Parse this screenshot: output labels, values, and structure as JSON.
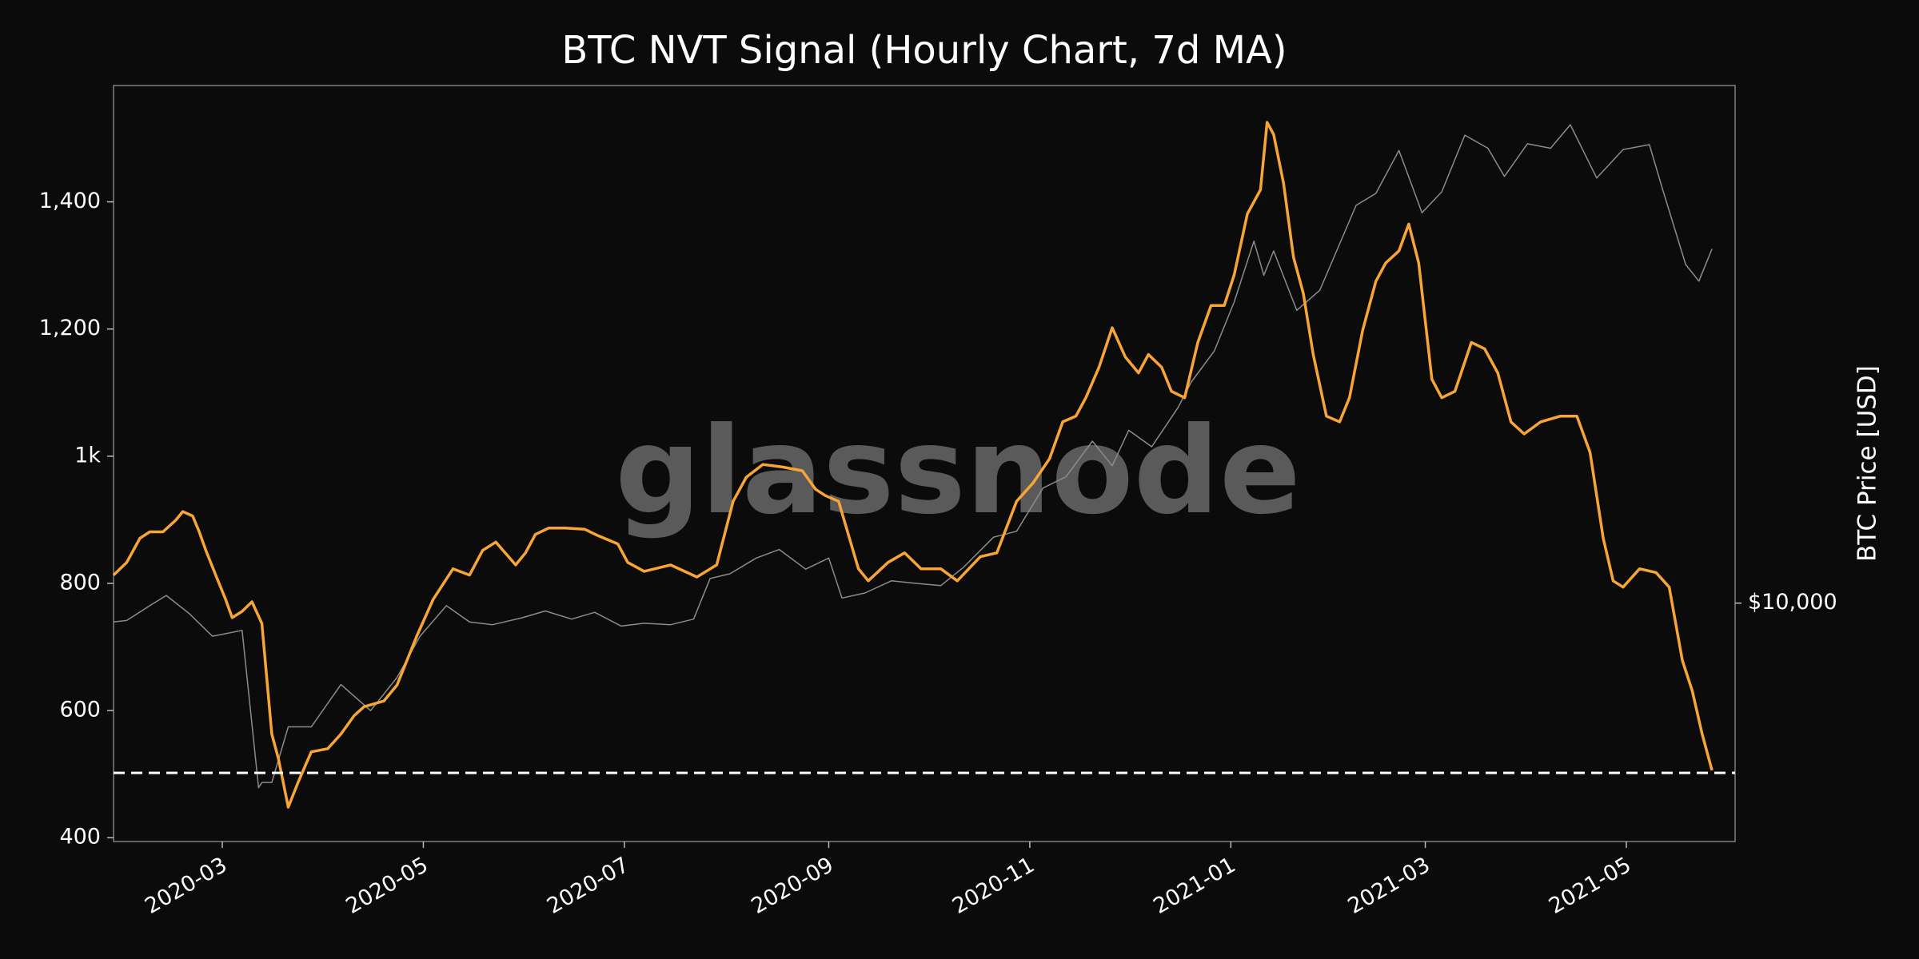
{
  "chart_data": {
    "type": "line",
    "title": "BTC NVT Signal (Hourly Chart, 7d MA)",
    "watermark": "glassnode",
    "y2label": "BTC Price [USD]",
    "xlim": [
      "2020-01-28",
      "2021-06-03"
    ],
    "xticks": [
      {
        "value": "2020-03-01",
        "label": "2020-03"
      },
      {
        "value": "2020-05-01",
        "label": "2020-05"
      },
      {
        "value": "2020-07-01",
        "label": "2020-07"
      },
      {
        "value": "2020-09-01",
        "label": "2020-09"
      },
      {
        "value": "2020-11-01",
        "label": "2020-11"
      },
      {
        "value": "2021-01-01",
        "label": "2021-01"
      },
      {
        "value": "2021-03-01",
        "label": "2021-03"
      },
      {
        "value": "2021-05-01",
        "label": "2021-05"
      }
    ],
    "ylim": [
      394,
      1583
    ],
    "yticks": [
      400,
      600,
      800,
      {
        "value": 1000,
        "label": "1k"
      },
      {
        "value": 1200,
        "label": "1,200"
      },
      {
        "value": 1400,
        "label": "1,400"
      }
    ],
    "y2lim": [
      3980,
      73900
    ],
    "y2scale": "log",
    "y2ticks": [
      {
        "value": 10000,
        "label": "$10,000"
      }
    ],
    "threshold": 502,
    "threshold_color": "#ffffff",
    "series": [
      {
        "color": "#8c8c8c",
        "axis": "y2",
        "x": [
          "2020-01-28",
          "2020-02-01",
          "2020-02-08",
          "2020-02-13",
          "2020-02-20",
          "2020-02-27",
          "2020-03-07",
          "2020-03-12",
          "2020-03-13",
          "2020-03-16",
          "2020-03-21",
          "2020-03-28",
          "2020-04-06",
          "2020-04-15",
          "2020-04-23",
          "2020-04-30",
          "2020-05-08",
          "2020-05-15",
          "2020-05-22",
          "2020-05-31",
          "2020-06-07",
          "2020-06-15",
          "2020-06-22",
          "2020-06-30",
          "2020-07-07",
          "2020-07-15",
          "2020-07-22",
          "2020-07-27",
          "2020-08-02",
          "2020-08-10",
          "2020-08-17",
          "2020-08-25",
          "2020-09-01",
          "2020-09-05",
          "2020-09-12",
          "2020-09-20",
          "2020-09-27",
          "2020-10-05",
          "2020-10-12",
          "2020-10-21",
          "2020-10-28",
          "2020-11-05",
          "2020-11-12",
          "2020-11-20",
          "2020-11-26",
          "2020-12-01",
          "2020-12-08",
          "2020-12-16",
          "2020-12-20",
          "2020-12-27",
          "2021-01-02",
          "2021-01-08",
          "2021-01-11",
          "2021-01-14",
          "2021-01-21",
          "2021-01-28",
          "2021-02-08",
          "2021-02-14",
          "2021-02-21",
          "2021-02-28",
          "2021-03-06",
          "2021-03-13",
          "2021-03-20",
          "2021-03-25",
          "2021-04-01",
          "2021-04-08",
          "2021-04-14",
          "2021-04-22",
          "2021-04-30",
          "2021-05-08",
          "2021-05-12",
          "2021-05-19",
          "2021-05-23",
          "2021-05-27"
        ],
        "values": [
          9300,
          9350,
          9900,
          10300,
          9600,
          8800,
          9000,
          4900,
          5000,
          5000,
          6200,
          6200,
          7300,
          6600,
          7500,
          8800,
          9900,
          9300,
          9200,
          9450,
          9700,
          9400,
          9650,
          9150,
          9250,
          9200,
          9400,
          11000,
          11200,
          11900,
          12300,
          11400,
          11900,
          10200,
          10400,
          10900,
          10800,
          10700,
          11500,
          12900,
          13200,
          15600,
          16300,
          18700,
          17000,
          19500,
          18300,
          21300,
          23500,
          26500,
          32000,
          40500,
          35500,
          39000,
          31000,
          33500,
          46500,
          48700,
          57500,
          45200,
          49000,
          61000,
          58000,
          52000,
          59000,
          58000,
          63500,
          51700,
          57700,
          58800,
          49500,
          37000,
          34700,
          39300
        ]
      },
      {
        "color": "#f7a535",
        "x": [
          "2020-01-28",
          "2020-02-01",
          "2020-02-05",
          "2020-02-08",
          "2020-02-12",
          "2020-02-16",
          "2020-02-18",
          "2020-02-21",
          "2020-02-23",
          "2020-02-25",
          "2020-02-28",
          "2020-03-02",
          "2020-03-04",
          "2020-03-07",
          "2020-03-10",
          "2020-03-13",
          "2020-03-16",
          "2020-03-18",
          "2020-03-21",
          "2020-03-24",
          "2020-03-28",
          "2020-04-02",
          "2020-04-06",
          "2020-04-10",
          "2020-04-13",
          "2020-04-19",
          "2020-04-23",
          "2020-04-29",
          "2020-05-04",
          "2020-05-10",
          "2020-05-15",
          "2020-05-19",
          "2020-05-23",
          "2020-05-29",
          "2020-06-01",
          "2020-06-04",
          "2020-06-08",
          "2020-06-13",
          "2020-06-19",
          "2020-06-23",
          "2020-06-29",
          "2020-07-02",
          "2020-07-07",
          "2020-07-15",
          "2020-07-23",
          "2020-07-29",
          "2020-08-03",
          "2020-08-07",
          "2020-08-12",
          "2020-08-18",
          "2020-08-24",
          "2020-08-28",
          "2020-08-31",
          "2020-09-04",
          "2020-09-10",
          "2020-09-13",
          "2020-09-19",
          "2020-09-24",
          "2020-09-29",
          "2020-10-05",
          "2020-10-10",
          "2020-10-17",
          "2020-10-22",
          "2020-10-28",
          "2020-11-02",
          "2020-11-07",
          "2020-11-11",
          "2020-11-15",
          "2020-11-18",
          "2020-11-22",
          "2020-11-26",
          "2020-11-30",
          "2020-12-04",
          "2020-12-07",
          "2020-12-11",
          "2020-12-14",
          "2020-12-18",
          "2020-12-22",
          "2020-12-26",
          "2020-12-30",
          "2021-01-02",
          "2021-01-06",
          "2021-01-10",
          "2021-01-12",
          "2021-01-14",
          "2021-01-17",
          "2021-01-20",
          "2021-01-23",
          "2021-01-26",
          "2021-01-30",
          "2021-02-03",
          "2021-02-06",
          "2021-02-10",
          "2021-02-14",
          "2021-02-17",
          "2021-02-21",
          "2021-02-24",
          "2021-02-27",
          "2021-03-03",
          "2021-03-06",
          "2021-03-10",
          "2021-03-15",
          "2021-03-19",
          "2021-03-23",
          "2021-03-27",
          "2021-03-31",
          "2021-04-05",
          "2021-04-11",
          "2021-04-16",
          "2021-04-20",
          "2021-04-24",
          "2021-04-27",
          "2021-04-30",
          "2021-05-05",
          "2021-05-10",
          "2021-05-14",
          "2021-05-18",
          "2021-05-21",
          "2021-05-24",
          "2021-05-27"
        ],
        "values": [
          813,
          833,
          871,
          881,
          881,
          900,
          913,
          906,
          881,
          852,
          813,
          775,
          746,
          756,
          771,
          737,
          563,
          525,
          448,
          487,
          535,
          540,
          563,
          592,
          606,
          615,
          640,
          717,
          775,
          823,
          813,
          852,
          865,
          829,
          848,
          877,
          887,
          887,
          885,
          875,
          862,
          833,
          819,
          829,
          810,
          829,
          929,
          967,
          987,
          983,
          977,
          948,
          938,
          929,
          823,
          804,
          833,
          848,
          823,
          823,
          804,
          842,
          848,
          929,
          958,
          996,
          1054,
          1063,
          1092,
          1140,
          1202,
          1156,
          1131,
          1160,
          1140,
          1102,
          1092,
          1179,
          1237,
          1237,
          1285,
          1381,
          1419,
          1525,
          1506,
          1429,
          1313,
          1256,
          1160,
          1063,
          1054,
          1092,
          1198,
          1275,
          1304,
          1323,
          1365,
          1304,
          1121,
          1092,
          1102,
          1179,
          1169,
          1131,
          1054,
          1035,
          1054,
          1063,
          1063,
          1006,
          871,
          804,
          794,
          823,
          817,
          794,
          679,
          631,
          563,
          506
        ]
      }
    ]
  }
}
